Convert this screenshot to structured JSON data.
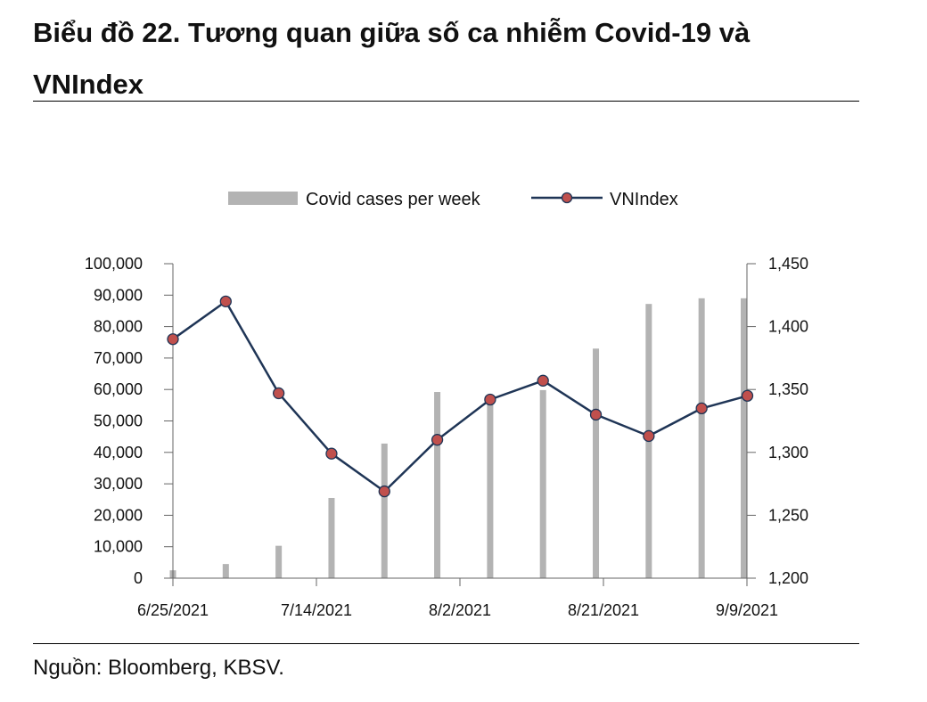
{
  "page": {
    "title": "Biểu đồ 22. Tương quan giữa số ca nhiễm Covid-19 và VNIndex",
    "source": "Nguồn: Bloomberg, KBSV."
  },
  "chart_data": {
    "type": "bar+line",
    "title": "Tương quan giữa số ca nhiễm Covid-19 và VNIndex",
    "legend_position": "top-center",
    "x_ticks": [
      "6/25/2021",
      "7/14/2021",
      "8/2/2021",
      "8/21/2021",
      "9/9/2021"
    ],
    "left_axis": {
      "ylim": [
        0,
        100000
      ],
      "ticks": [
        0,
        10000,
        20000,
        30000,
        40000,
        50000,
        60000,
        70000,
        80000,
        90000,
        100000
      ],
      "tick_labels": [
        "0",
        "10,000",
        "20,000",
        "30,000",
        "40,000",
        "50,000",
        "60,000",
        "70,000",
        "80,000",
        "90,000",
        "100,000"
      ]
    },
    "right_axis": {
      "ylim": [
        1200,
        1450
      ],
      "ticks": [
        1200,
        1250,
        1300,
        1350,
        1400,
        1450
      ],
      "tick_labels": [
        "1,200",
        "1,250",
        "1,300",
        "1,350",
        "1,400",
        "1,450"
      ]
    },
    "x_range": [
      0,
      76
    ],
    "series": [
      {
        "name": "Covid cases per week",
        "type": "bar",
        "axis": "left",
        "color": "#b3b3b3",
        "x": [
          0,
          7,
          14,
          21,
          28,
          35,
          42,
          49,
          56,
          63,
          70,
          77
        ],
        "values": [
          2500,
          4500,
          10300,
          25500,
          42800,
          59200,
          56800,
          59800,
          73000,
          87200,
          89000,
          89000
        ]
      },
      {
        "name": "VNIndex",
        "type": "line",
        "axis": "right",
        "color": "#1f3556",
        "marker_color": "#c0504d",
        "x": [
          0,
          7,
          14,
          21,
          28,
          35,
          42,
          49,
          56,
          63,
          70,
          77
        ],
        "values": [
          1390,
          1420,
          1347,
          1299,
          1269,
          1310,
          1342,
          1357,
          1330,
          1313,
          1335,
          1345
        ]
      }
    ]
  }
}
